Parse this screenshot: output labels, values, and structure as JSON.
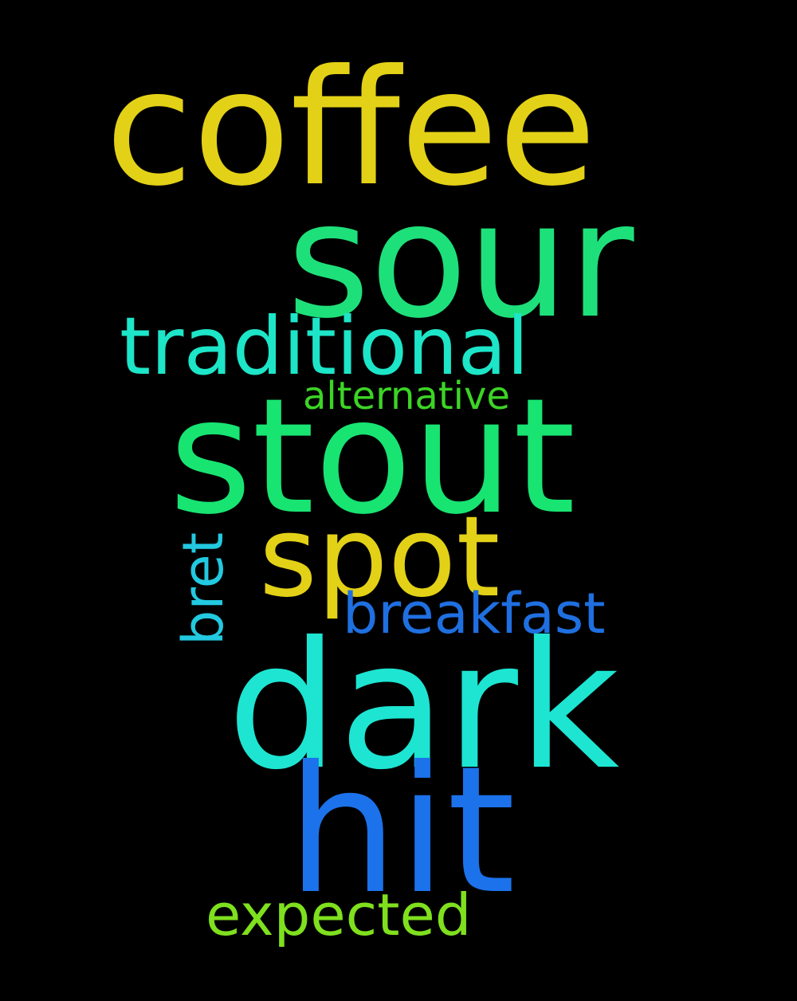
{
  "words": {
    "coffee": "coffee",
    "sour": "sour",
    "traditional": "traditional",
    "alternative": "alternative",
    "stout": "stout",
    "spot": "spot",
    "breakfast": "breakfast",
    "bret": "bret",
    "dark": "dark",
    "hit": "hit",
    "expected": "expected"
  },
  "colors": {
    "background": "#000000",
    "coffee": "#E3D117",
    "sour": "#1EE07A",
    "traditional": "#1DE5C8",
    "alternative": "#3CD425",
    "stout": "#18E472",
    "spot": "#E3D117",
    "breakfast": "#1F6FE0",
    "bret": "#22C9E0",
    "dark": "#1DE5D2",
    "hit": "#1C72EA",
    "expected": "#7FE01E"
  }
}
